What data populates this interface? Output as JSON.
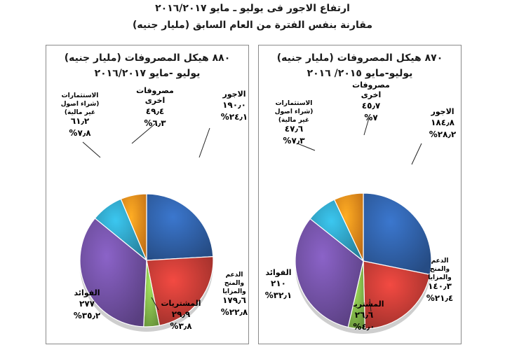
{
  "header": {
    "line1": "ارتفاع الاجور فى يوليو ـ مايو ٢٠١٦/٢٠١٧",
    "line2": "مقارنة بنفس الفترة من العام السابق (مليار جنيه)"
  },
  "chart_data": [
    {
      "type": "pie",
      "title": "٨٨٠ هيكل المصروفات (مليار جنيه)",
      "subtitle": "يوليو -مايو ٢٠١٦/٢٠١٧",
      "slices": [
        {
          "lines": [
            "الاجور"
          ],
          "amount": "١٩٠٫٠",
          "percent": "٢٤٫١",
          "value": 24.1,
          "color": "#2f5fa5"
        },
        {
          "lines": [
            "الدعم",
            "والمنح",
            "والمزايا"
          ],
          "amount": "١٧٩٫٦",
          "percent": "٢٢٫٨",
          "value": 22.8,
          "color": "#c23b35"
        },
        {
          "lines": [
            "المشتريات"
          ],
          "amount": "٢٩٫٩",
          "percent": "٣٫٨",
          "value": 3.8,
          "color": "#82b64a"
        },
        {
          "lines": [
            "الفوائد"
          ],
          "amount": "٢٧٧",
          "percent": "٣٥٫٢",
          "value": 35.2,
          "color": "#6f4fa0"
        },
        {
          "lines": [
            "الاستثمارات",
            "(شراء اصول",
            "غير مالية)"
          ],
          "amount": "٦١٫٢",
          "percent": "٧٫٨",
          "value": 7.8,
          "color": "#2f9fc0"
        },
        {
          "lines": [
            "مصروفات",
            "اخرى"
          ],
          "amount": "٤٩٫٤",
          "percent": "٦٫٣",
          "value": 6.3,
          "color": "#f08a1c"
        }
      ]
    },
    {
      "type": "pie",
      "title": "٨٧٠ هيكل المصروفات (مليار جنيه)",
      "subtitle": "يوليو-مايو ٢٠١٥/ ٢٠١٦",
      "slices": [
        {
          "lines": [
            "الاجور"
          ],
          "amount": "١٨٤٫٨",
          "percent": "٢٨٫٢",
          "value": 28.2,
          "color": "#2f5fa5"
        },
        {
          "lines": [
            "الدعم",
            "والمنح",
            "والمزايا"
          ],
          "amount": "١٤٠٫٣",
          "percent": "٢١٫٤",
          "value": 21.4,
          "color": "#c23b35"
        },
        {
          "lines": [
            "المشتريات"
          ],
          "amount": "٢٦٫٦",
          "percent": "٤٫٠",
          "value": 4.0,
          "color": "#82b64a"
        },
        {
          "lines": [
            "الفوائد"
          ],
          "amount": "٢١٠",
          "percent": "٣٢٫١",
          "value": 32.1,
          "color": "#6f4fa0"
        },
        {
          "lines": [
            "الاستثمارات",
            "(شراء اصول",
            "غير مالية)"
          ],
          "amount": "٤٧٫٦",
          "percent": "٧٫٣",
          "value": 7.3,
          "color": "#2f9fc0"
        },
        {
          "lines": [
            "مصروفات",
            "اخرى"
          ],
          "amount": "٤٥٫٧",
          "percent": "٧",
          "value": 7.0,
          "color": "#f08a1c"
        }
      ]
    }
  ]
}
